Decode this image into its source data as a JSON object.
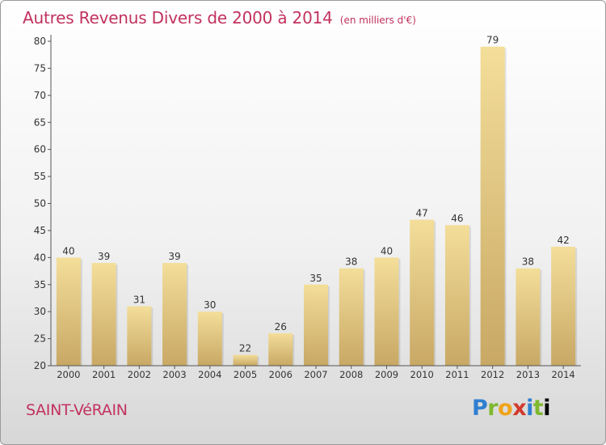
{
  "title": "Autres Revenus Divers de 2000 à 2014",
  "unit_note": "(en milliers d'€)",
  "commune": "SAINT-VéRAIN",
  "logo": [
    "P",
    "r",
    "o",
    "x",
    "i",
    "t",
    "i"
  ],
  "colors": {
    "title": "#c2325f",
    "bar_light": "#f3de9a",
    "bar_dark": "#c8a864",
    "axis": "#555555"
  },
  "chart_data": {
    "type": "bar",
    "title": "Autres Revenus Divers de 2000 à 2014",
    "subtitle": "(en milliers d'€)",
    "categories": [
      "2000",
      "2001",
      "2002",
      "2003",
      "2004",
      "2005",
      "2006",
      "2007",
      "2008",
      "2009",
      "2010",
      "2011",
      "2012",
      "2013",
      "2014"
    ],
    "values": [
      40,
      39,
      31,
      39,
      30,
      22,
      26,
      35,
      38,
      40,
      47,
      46,
      79,
      38,
      42
    ],
    "ylim": [
      20,
      80
    ],
    "yticks": [
      20,
      25,
      30,
      35,
      40,
      45,
      50,
      55,
      60,
      65,
      70,
      75,
      80
    ],
    "data_labels": true,
    "grid": false
  }
}
